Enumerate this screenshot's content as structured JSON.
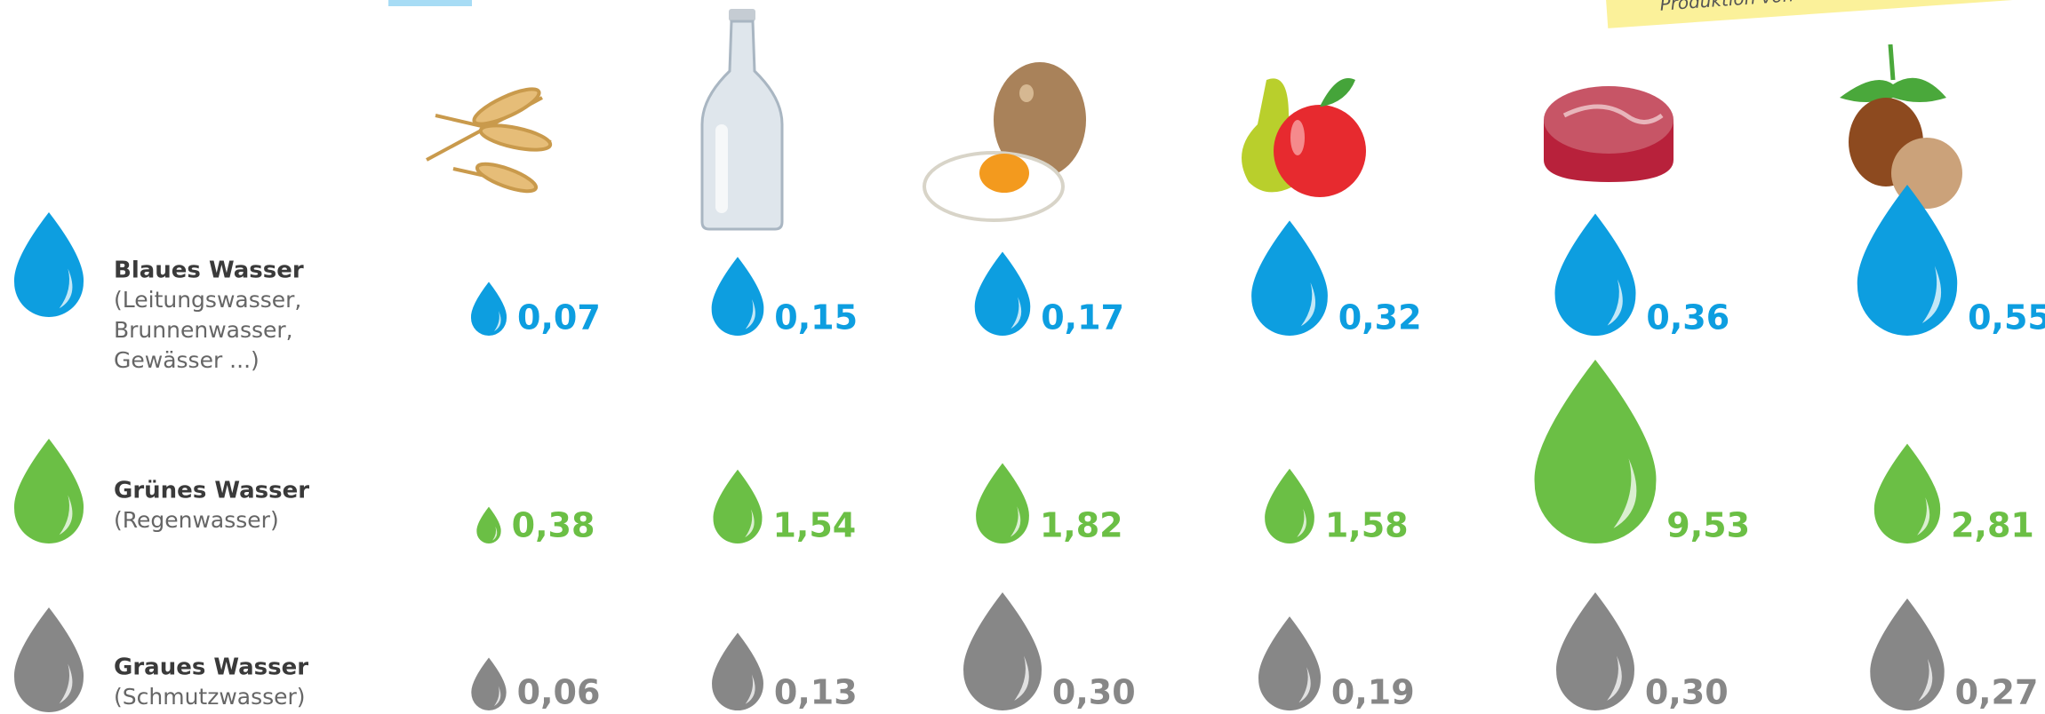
{
  "chart_data": {
    "type": "bubble",
    "annotation": "Produktion von",
    "series": [
      {
        "name": "Blaues Wasser",
        "description": [
          "(Leitungswasser,",
          "Brunnenwasser,",
          "Gewässer ...)"
        ],
        "color": "#0d9ee0",
        "values": [
          0.07,
          0.15,
          0.17,
          0.32,
          0.36,
          0.55
        ],
        "value_labels": [
          "0,07",
          "0,15",
          "0,17",
          "0,32",
          "0,36",
          "0,55"
        ]
      },
      {
        "name": "Grünes Wasser",
        "description": [
          "(Regenwasser)"
        ],
        "color": "#6bbf45",
        "values": [
          0.38,
          1.54,
          1.82,
          1.58,
          9.53,
          2.81
        ],
        "value_labels": [
          "0,38",
          "1,54",
          "1,82",
          "1,58",
          "9,53",
          "2,81"
        ]
      },
      {
        "name": "Graues Wasser",
        "description": [
          "(Schmutzwasser)"
        ],
        "color": "#878787",
        "values": [
          0.06,
          0.13,
          0.3,
          0.19,
          0.3,
          0.27
        ],
        "value_labels": [
          "0,06",
          "0,13",
          "0,30",
          "0,19",
          "0,30",
          "0,27"
        ]
      }
    ]
  }
}
